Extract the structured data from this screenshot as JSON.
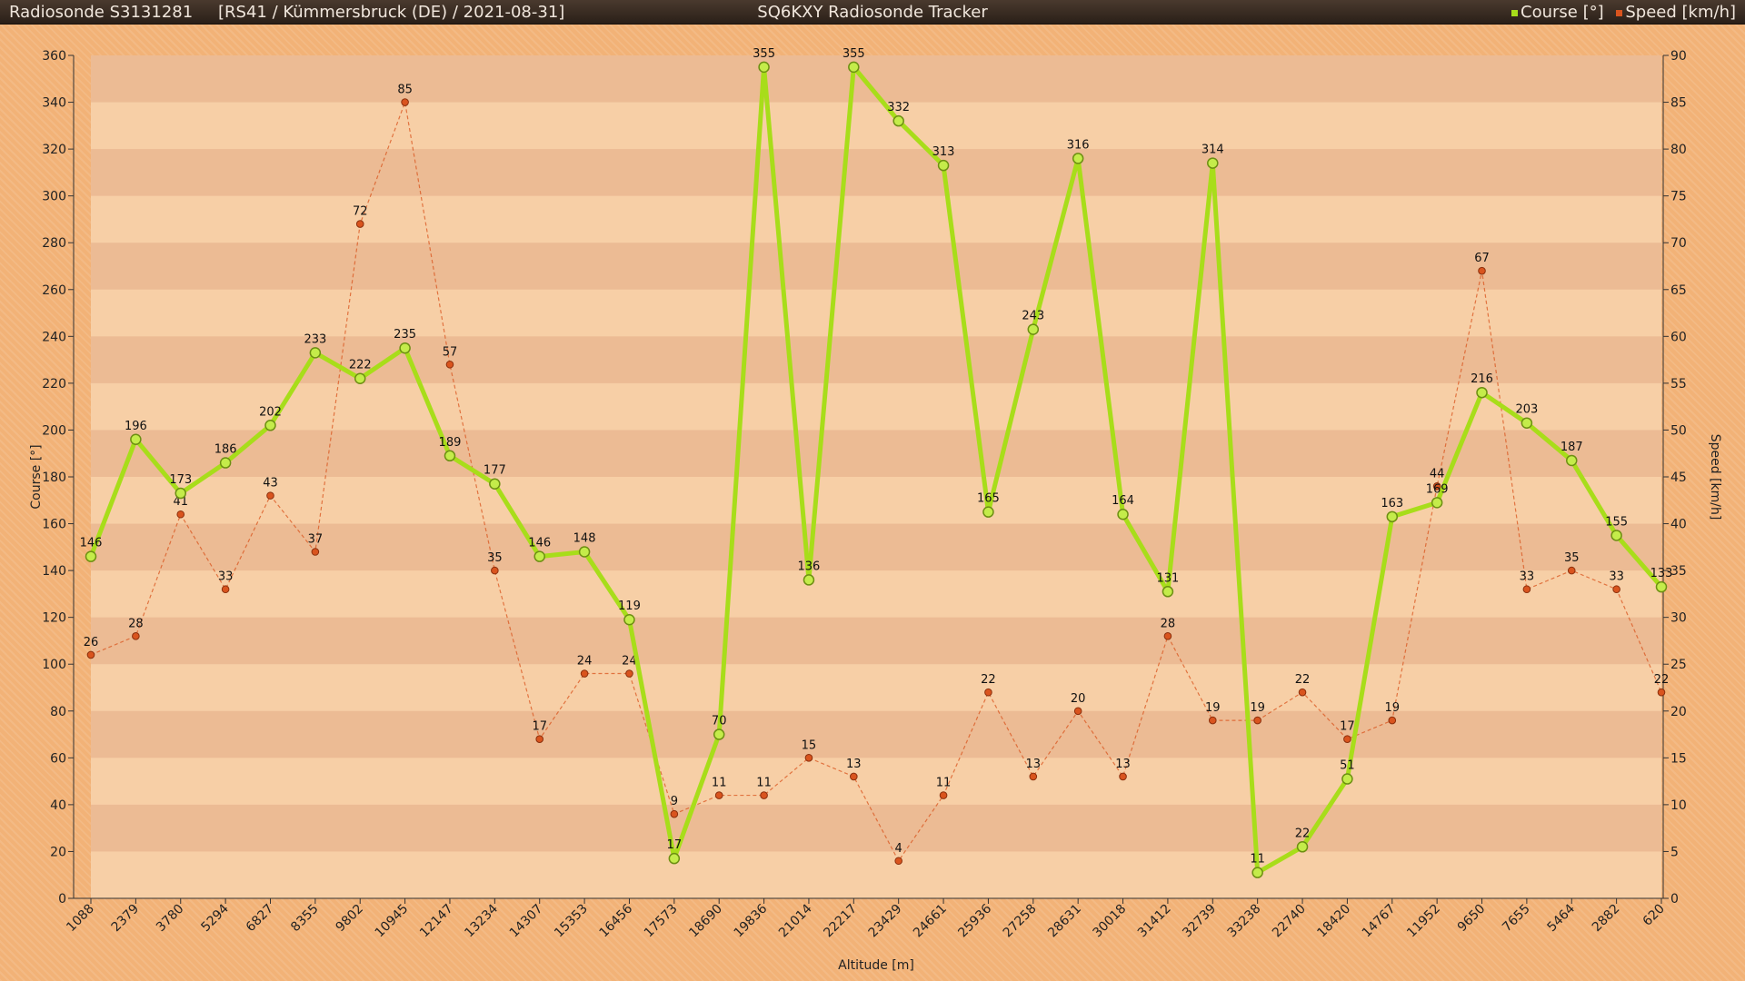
{
  "header": {
    "sonde_id": "Radiosonde S3131281",
    "meta": "[RS41 / Kümmersbruck (DE) / 2021-08-31]",
    "app_title": "SQ6KXY Radiosonde Tracker"
  },
  "colors": {
    "course": "#a8dd1a",
    "speed": "#d9541e",
    "background": "#f2b277"
  },
  "chart_data": {
    "type": "line",
    "categories": [
      "1088",
      "2379",
      "3780",
      "5294",
      "6827",
      "8355",
      "9802",
      "10945",
      "12147",
      "13234",
      "14307",
      "15353",
      "16456",
      "17573",
      "18690",
      "19836",
      "21014",
      "22217",
      "23429",
      "24661",
      "25936",
      "27258",
      "28631",
      "30018",
      "31412",
      "32739",
      "33238",
      "22740",
      "18420",
      "14767",
      "11952",
      "9650",
      "7655",
      "5464",
      "2882",
      "620"
    ],
    "xlabel": "Altitude [m]",
    "ylabel": "Course [°]",
    "y2label": "Speed [km/h]",
    "ylim": [
      0,
      360
    ],
    "y2lim": [
      0,
      90
    ],
    "yticks": [
      0,
      20,
      40,
      60,
      80,
      100,
      120,
      140,
      160,
      180,
      200,
      220,
      240,
      260,
      280,
      300,
      320,
      340,
      360
    ],
    "y2ticks": [
      0,
      5,
      10,
      15,
      20,
      25,
      30,
      35,
      40,
      45,
      50,
      55,
      60,
      65,
      70,
      75,
      80,
      85,
      90
    ],
    "grid": "horizontal bands",
    "legend": "top-right",
    "series": [
      {
        "name": "Course [°]",
        "axis": "left",
        "values": [
          146,
          196,
          173,
          186,
          202,
          233,
          222,
          235,
          189,
          177,
          146,
          148,
          119,
          17,
          70,
          355,
          136,
          355,
          332,
          313,
          165,
          243,
          316,
          164,
          131,
          314,
          11,
          22,
          51,
          163,
          169,
          216,
          203,
          187,
          155,
          133
        ]
      },
      {
        "name": "Speed [km/h]",
        "axis": "right",
        "values": [
          26,
          28,
          41,
          33,
          43,
          37,
          72,
          85,
          57,
          35,
          17,
          24,
          24,
          9,
          11,
          11,
          15,
          13,
          4,
          11,
          22,
          13,
          20,
          13,
          28,
          19,
          19,
          22,
          17,
          19,
          44,
          67,
          33,
          35,
          33,
          22
        ]
      }
    ]
  }
}
